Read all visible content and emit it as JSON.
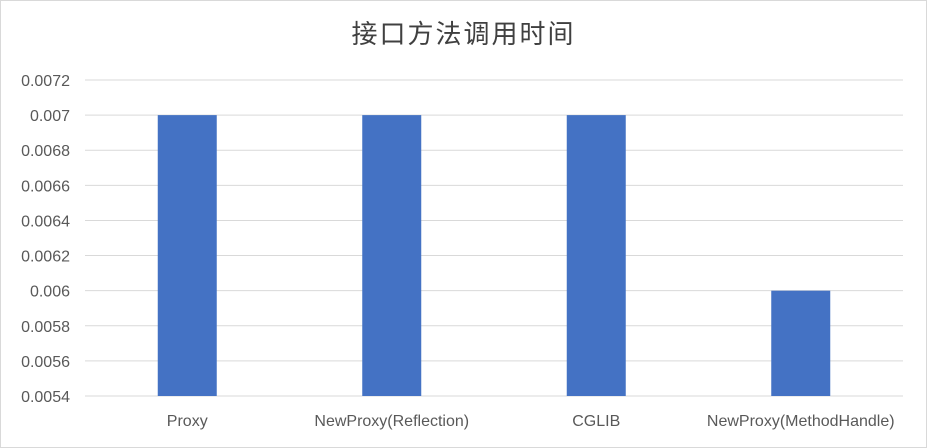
{
  "chart_data": {
    "type": "bar",
    "title": "接口方法调用时间",
    "categories": [
      "Proxy",
      "NewProxy(Reflection)",
      "CGLIB",
      "NewProxy(MethodHandle)"
    ],
    "values": [
      0.007,
      0.007,
      0.007,
      0.006
    ],
    "xlabel": "",
    "ylabel": "",
    "ylim": [
      0.0054,
      0.0072
    ],
    "yticks": [
      "0.0054",
      "0.0056",
      "0.0058",
      "0.006",
      "0.0062",
      "0.0064",
      "0.0066",
      "0.0068",
      "0.007",
      "0.0072"
    ],
    "grid": true,
    "legend": "none",
    "bar_color": "#4472c4",
    "grid_color": "#d9d9d9"
  }
}
